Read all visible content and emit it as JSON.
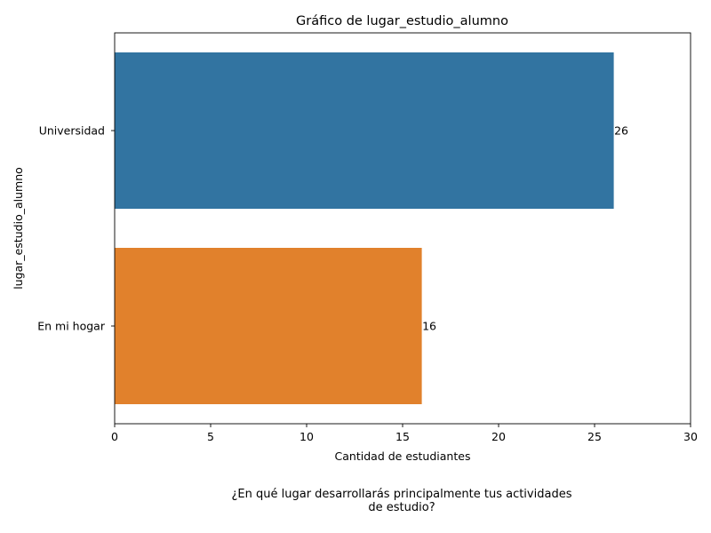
{
  "chart_data": {
    "type": "bar",
    "orientation": "horizontal",
    "title": "Gráfico de lugar_estudio_alumno",
    "xlabel": "Cantidad de estudiantes",
    "ylabel": "lugar_estudio_alumno",
    "categories": [
      "Universidad",
      "En mi hogar"
    ],
    "values": [
      26,
      16
    ],
    "data_labels": [
      "26",
      "16"
    ],
    "colors": [
      "#3274a1",
      "#e1812c"
    ],
    "xlim": [
      0,
      30
    ],
    "xticks": [
      0,
      5,
      10,
      15,
      20,
      25,
      30
    ],
    "grid": false,
    "legend": "none"
  },
  "caption": {
    "line1": "¿En qué lugar desarrollarás principalmente tus actividades",
    "line2": "de estudio?"
  }
}
